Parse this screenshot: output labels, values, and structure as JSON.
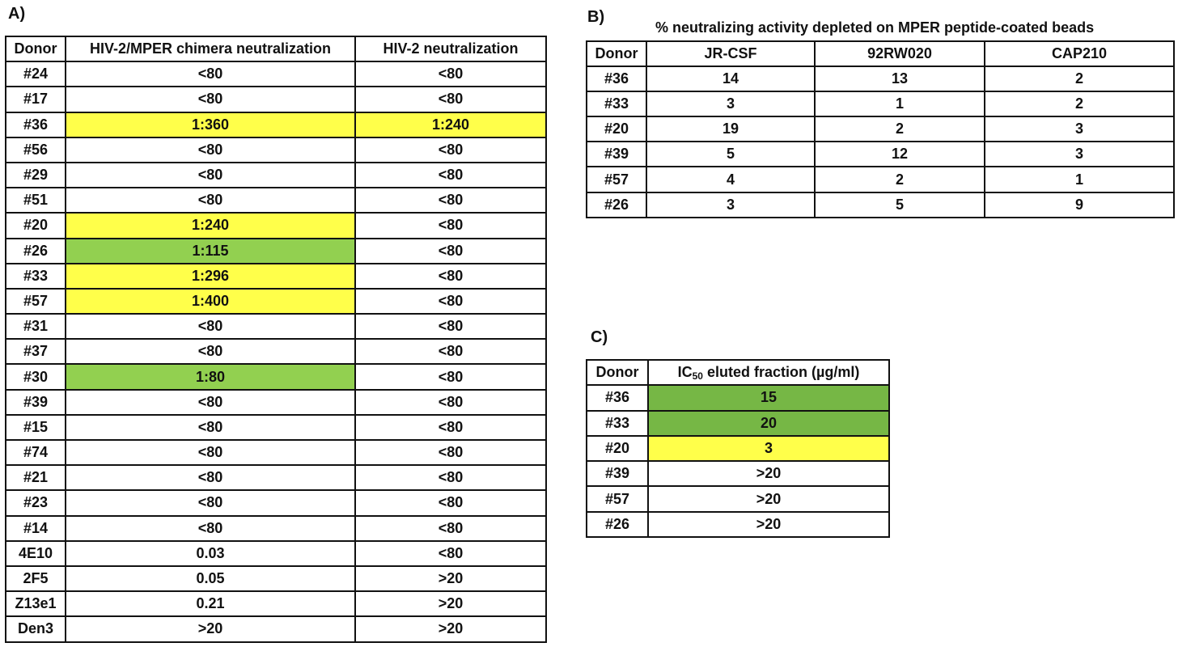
{
  "panelA": {
    "label": "A)",
    "headers": [
      "Donor",
      "HIV-2/MPER chimera neutralization",
      "HIV-2 neutralization"
    ],
    "rows": [
      {
        "donor": "#24",
        "chimera": "<80",
        "hiv2": "<80",
        "chimera_bg": "",
        "hiv2_bg": ""
      },
      {
        "donor": "#17",
        "chimera": "<80",
        "hiv2": "<80",
        "chimera_bg": "",
        "hiv2_bg": ""
      },
      {
        "donor": "#36",
        "chimera": "1:360",
        "hiv2": "1:240",
        "chimera_bg": "#ffff4a",
        "hiv2_bg": "#ffff4a"
      },
      {
        "donor": "#56",
        "chimera": "<80",
        "hiv2": "<80",
        "chimera_bg": "",
        "hiv2_bg": ""
      },
      {
        "donor": "#29",
        "chimera": "<80",
        "hiv2": "<80",
        "chimera_bg": "",
        "hiv2_bg": ""
      },
      {
        "donor": "#51",
        "chimera": "<80",
        "hiv2": "<80",
        "chimera_bg": "",
        "hiv2_bg": ""
      },
      {
        "donor": "#20",
        "chimera": "1:240",
        "hiv2": "<80",
        "chimera_bg": "#ffff4a",
        "hiv2_bg": ""
      },
      {
        "donor": "#26",
        "chimera": "1:115",
        "hiv2": "<80",
        "chimera_bg": "#92d050",
        "hiv2_bg": ""
      },
      {
        "donor": "#33",
        "chimera": "1:296",
        "hiv2": "<80",
        "chimera_bg": "#ffff4a",
        "hiv2_bg": ""
      },
      {
        "donor": "#57",
        "chimera": "1:400",
        "hiv2": "<80",
        "chimera_bg": "#ffff4a",
        "hiv2_bg": ""
      },
      {
        "donor": "#31",
        "chimera": "<80",
        "hiv2": "<80",
        "chimera_bg": "",
        "hiv2_bg": ""
      },
      {
        "donor": "#37",
        "chimera": "<80",
        "hiv2": "<80",
        "chimera_bg": "",
        "hiv2_bg": ""
      },
      {
        "donor": "#30",
        "chimera": "1:80",
        "hiv2": "<80",
        "chimera_bg": "#92d050",
        "hiv2_bg": ""
      },
      {
        "donor": "#39",
        "chimera": "<80",
        "hiv2": "<80",
        "chimera_bg": "",
        "hiv2_bg": ""
      },
      {
        "donor": "#15",
        "chimera": "<80",
        "hiv2": "<80",
        "chimera_bg": "",
        "hiv2_bg": ""
      },
      {
        "donor": "#74",
        "chimera": "<80",
        "hiv2": "<80",
        "chimera_bg": "",
        "hiv2_bg": ""
      },
      {
        "donor": "#21",
        "chimera": "<80",
        "hiv2": "<80",
        "chimera_bg": "",
        "hiv2_bg": ""
      },
      {
        "donor": "#23",
        "chimera": "<80",
        "hiv2": "<80",
        "chimera_bg": "",
        "hiv2_bg": ""
      },
      {
        "donor": "#14",
        "chimera": "<80",
        "hiv2": "<80",
        "chimera_bg": "",
        "hiv2_bg": ""
      },
      {
        "donor": "4E10",
        "chimera": "0.03",
        "hiv2": "<80",
        "chimera_bg": "",
        "hiv2_bg": ""
      },
      {
        "donor": "2F5",
        "chimera": "0.05",
        "hiv2": ">20",
        "chimera_bg": "",
        "hiv2_bg": ""
      },
      {
        "donor": "Z13e1",
        "chimera": "0.21",
        "hiv2": ">20",
        "chimera_bg": "",
        "hiv2_bg": ""
      },
      {
        "donor": "Den3",
        "chimera": ">20",
        "hiv2": ">20",
        "chimera_bg": "",
        "hiv2_bg": ""
      }
    ]
  },
  "panelB": {
    "label": "B)",
    "caption": "% neutralizing activity depleted on MPER peptide-coated beads",
    "headers": [
      "Donor",
      "JR-CSF",
      "92RW020",
      "CAP210"
    ],
    "rows": [
      [
        "#36",
        "14",
        "13",
        "2"
      ],
      [
        "#33",
        "3",
        "1",
        "2"
      ],
      [
        "#20",
        "19",
        "2",
        "3"
      ],
      [
        "#39",
        "5",
        "12",
        "3"
      ],
      [
        "#57",
        "4",
        "2",
        "1"
      ],
      [
        "#26",
        "3",
        "5",
        "9"
      ]
    ]
  },
  "panelC": {
    "label": "C)",
    "header_donor": "Donor",
    "header_ic_prefix": "IC",
    "header_ic_sub": "50",
    "header_ic_suffix": " eluted fraction (µg/ml)",
    "rows": [
      {
        "donor": "#36",
        "value": "15",
        "bg": "#76b745"
      },
      {
        "donor": "#33",
        "value": "20",
        "bg": "#76b745"
      },
      {
        "donor": "#20",
        "value": "3",
        "bg": "#ffff4a"
      },
      {
        "donor": "#39",
        "value": ">20",
        "bg": ""
      },
      {
        "donor": "#57",
        "value": ">20",
        "bg": ""
      },
      {
        "donor": "#26",
        "value": ">20",
        "bg": ""
      }
    ]
  }
}
